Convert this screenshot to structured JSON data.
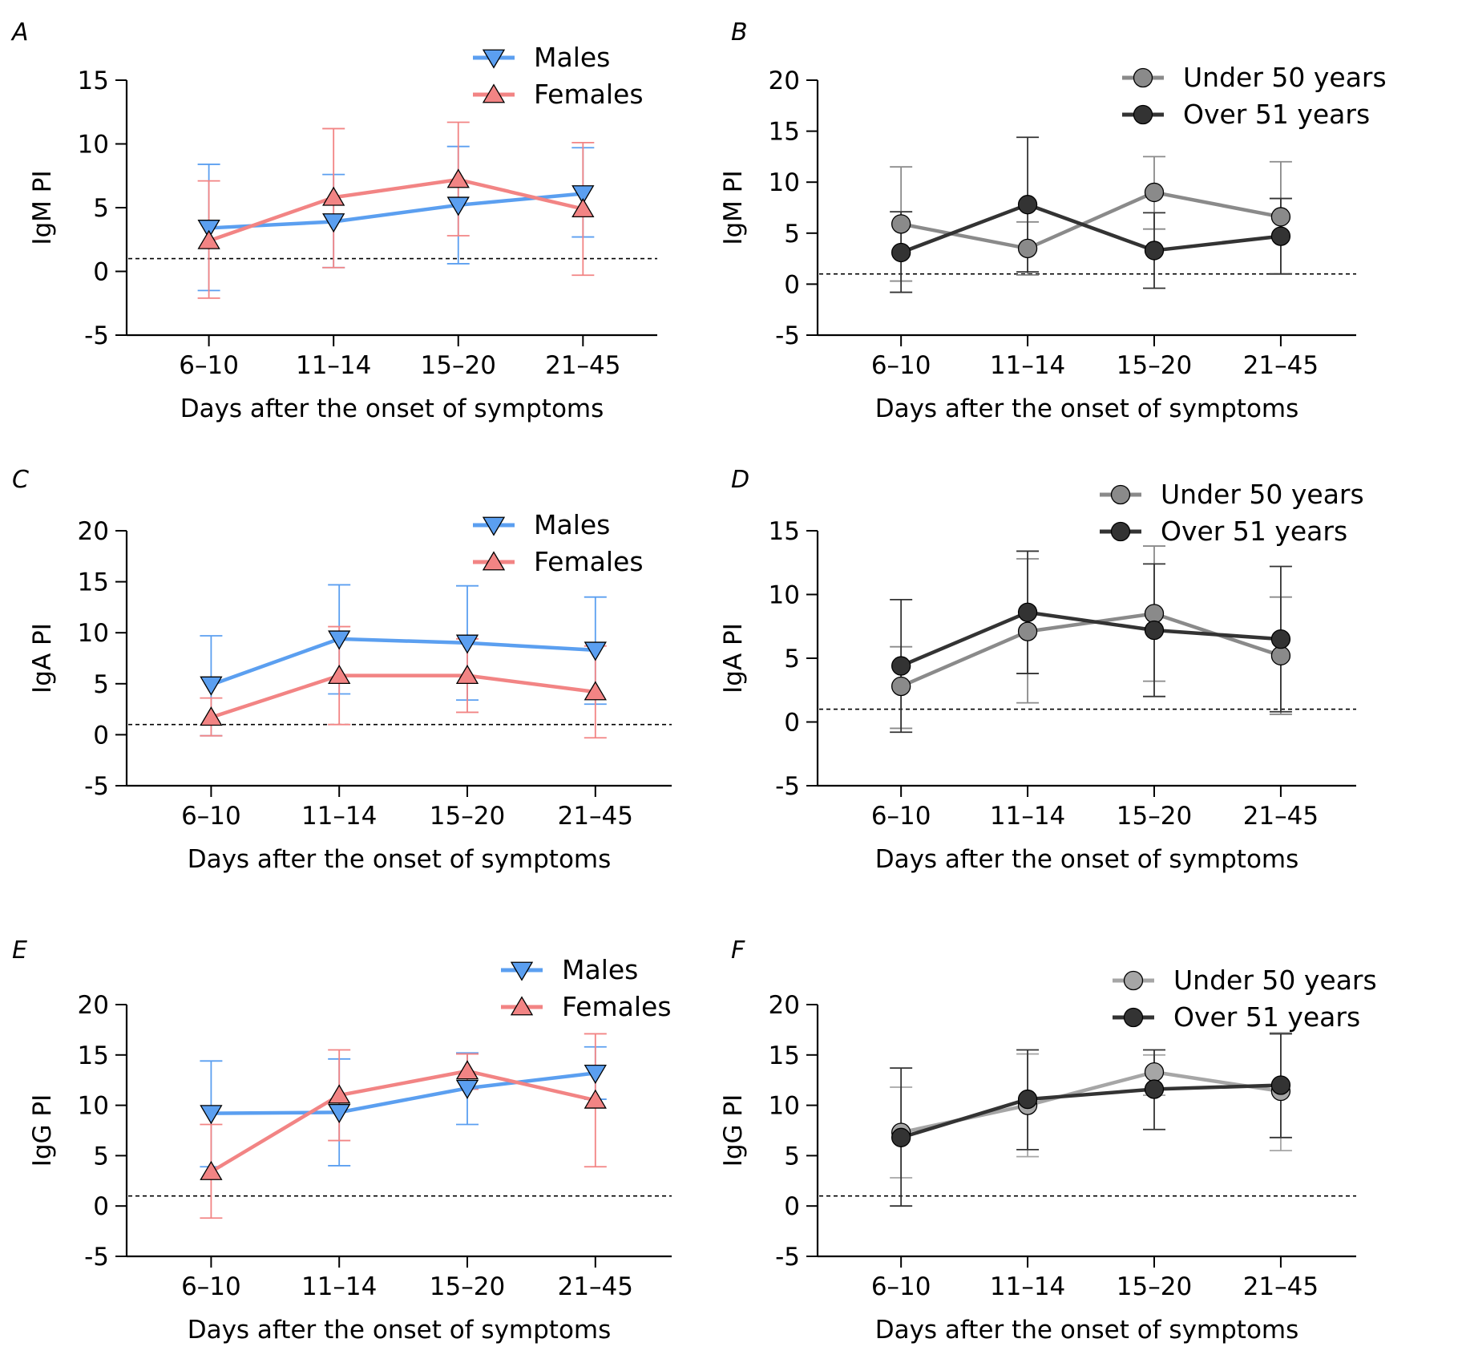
{
  "chart_data": [
    {
      "panel": "A",
      "type": "line",
      "ylabel": "IgM PI",
      "xlabel": "Days after the onset of symptoms",
      "categories": [
        "6–10",
        "11–14",
        "15–20",
        "21–45"
      ],
      "ylim": [
        -5,
        15
      ],
      "yticks": [
        -5,
        0,
        5,
        10,
        15
      ],
      "threshold": 1,
      "legend_position": "top-right",
      "series": [
        {
          "name": "Males",
          "marker": "triangle-down",
          "color": "#5b9ff0",
          "values": [
            3.4,
            3.9,
            5.2,
            6.1
          ],
          "error_low": [
            -1.5,
            0.3,
            0.6,
            2.7
          ],
          "error_high": [
            8.4,
            7.6,
            9.8,
            9.7
          ]
        },
        {
          "name": "Females",
          "marker": "triangle-up",
          "color": "#f28484",
          "values": [
            2.4,
            5.8,
            7.2,
            4.9
          ],
          "error_low": [
            -2.1,
            0.3,
            2.8,
            -0.3
          ],
          "error_high": [
            7.1,
            11.2,
            11.7,
            10.1
          ]
        }
      ]
    },
    {
      "panel": "B",
      "type": "line",
      "ylabel": "IgM PI",
      "xlabel": "Days after the onset of symptoms",
      "categories": [
        "6–10",
        "11–14",
        "15–20",
        "21–45"
      ],
      "ylim": [
        -5,
        20
      ],
      "yticks": [
        -5,
        0,
        5,
        10,
        15,
        20
      ],
      "threshold": 1,
      "legend_position": "top-right",
      "series": [
        {
          "name": "Under 50 years",
          "marker": "circle",
          "color": "#8a8a8a",
          "values": [
            5.9,
            3.5,
            9.0,
            6.6
          ],
          "error_low": [
            0.3,
            0.9,
            5.4,
            1.0
          ],
          "error_high": [
            11.5,
            6.1,
            12.5,
            12.0
          ]
        },
        {
          "name": "Over 51 years",
          "marker": "circle",
          "color": "#333333",
          "values": [
            3.1,
            7.8,
            3.3,
            4.7
          ],
          "error_low": [
            -0.8,
            1.2,
            -0.4,
            1.0
          ],
          "error_high": [
            7.1,
            14.4,
            7.0,
            8.4
          ]
        }
      ]
    },
    {
      "panel": "C",
      "type": "line",
      "ylabel": "IgA PI",
      "xlabel": "Days after the onset of symptoms",
      "categories": [
        "6–10",
        "11–14",
        "15–20",
        "21–45"
      ],
      "ylim": [
        -5,
        20
      ],
      "yticks": [
        -5,
        0,
        5,
        10,
        15,
        20
      ],
      "threshold": 1,
      "legend_position": "top-right",
      "series": [
        {
          "name": "Males",
          "marker": "triangle-down",
          "color": "#5b9ff0",
          "values": [
            4.9,
            9.4,
            9.0,
            8.3
          ],
          "error_low": [
            -0.1,
            4.0,
            3.4,
            3.0
          ],
          "error_high": [
            9.7,
            14.7,
            14.6,
            13.5
          ]
        },
        {
          "name": "Females",
          "marker": "triangle-up",
          "color": "#f28484",
          "values": [
            1.7,
            5.8,
            5.8,
            4.2
          ],
          "error_low": [
            -0.1,
            1.0,
            2.2,
            -0.3
          ],
          "error_high": [
            3.6,
            10.6,
            9.4,
            8.7
          ]
        }
      ]
    },
    {
      "panel": "D",
      "type": "line",
      "ylabel": "IgA PI",
      "xlabel": "Days after the onset of symptoms",
      "categories": [
        "6–10",
        "11–14",
        "15–20",
        "21–45"
      ],
      "ylim": [
        -5,
        15
      ],
      "yticks": [
        -5,
        0,
        5,
        10,
        15
      ],
      "threshold": 1,
      "legend_position": "top-right",
      "series": [
        {
          "name": "Under 50 years",
          "marker": "circle",
          "color": "#8a8a8a",
          "values": [
            2.8,
            7.1,
            8.5,
            5.2
          ],
          "error_low": [
            -0.5,
            1.5,
            3.2,
            0.6
          ],
          "error_high": [
            5.9,
            12.8,
            13.8,
            9.8
          ]
        },
        {
          "name": "Over 51 years",
          "marker": "circle",
          "color": "#333333",
          "values": [
            4.4,
            8.6,
            7.2,
            6.5
          ],
          "error_low": [
            -0.8,
            3.8,
            2.0,
            0.8
          ],
          "error_high": [
            9.6,
            13.4,
            12.4,
            12.2
          ]
        }
      ]
    },
    {
      "panel": "E",
      "type": "line",
      "ylabel": "IgG PI",
      "xlabel": "Days after the onset of symptoms",
      "categories": [
        "6–10",
        "11–14",
        "15–20",
        "21–45"
      ],
      "ylim": [
        -5,
        20
      ],
      "yticks": [
        -5,
        0,
        5,
        10,
        15,
        20
      ],
      "threshold": 1,
      "legend_position": "top-right",
      "series": [
        {
          "name": "Males",
          "marker": "triangle-down",
          "color": "#5b9ff0",
          "values": [
            9.2,
            9.3,
            11.7,
            13.2
          ],
          "error_low": [
            3.9,
            4.0,
            8.1,
            10.6
          ],
          "error_high": [
            14.4,
            14.6,
            15.2,
            15.8
          ]
        },
        {
          "name": "Females",
          "marker": "triangle-up",
          "color": "#f28484",
          "values": [
            3.4,
            11.0,
            13.4,
            10.5
          ],
          "error_low": [
            -1.2,
            6.5,
            11.6,
            3.9
          ],
          "error_high": [
            8.1,
            15.5,
            15.1,
            17.1
          ]
        }
      ]
    },
    {
      "panel": "F",
      "type": "line",
      "ylabel": "IgG PI",
      "xlabel": "Days after the onset of symptoms",
      "categories": [
        "6–10",
        "11–14",
        "15–20",
        "21–45"
      ],
      "ylim": [
        -5,
        20
      ],
      "yticks": [
        -5,
        0,
        5,
        10,
        15,
        20
      ],
      "threshold": 1,
      "legend_position": "top-right",
      "series": [
        {
          "name": "Under 50 years",
          "marker": "circle",
          "color": "#a6a6a6",
          "values": [
            7.3,
            10.0,
            13.3,
            11.4
          ],
          "error_low": [
            2.8,
            4.9,
            11.0,
            5.5
          ],
          "error_high": [
            11.8,
            15.1,
            15.0,
            17.2
          ]
        },
        {
          "name": "Over 51 years",
          "marker": "circle",
          "color": "#333333",
          "values": [
            6.8,
            10.6,
            11.6,
            12.0
          ],
          "error_low": [
            0.0,
            5.6,
            7.6,
            6.8
          ],
          "error_high": [
            13.7,
            15.5,
            15.5,
            17.1
          ]
        }
      ]
    }
  ]
}
